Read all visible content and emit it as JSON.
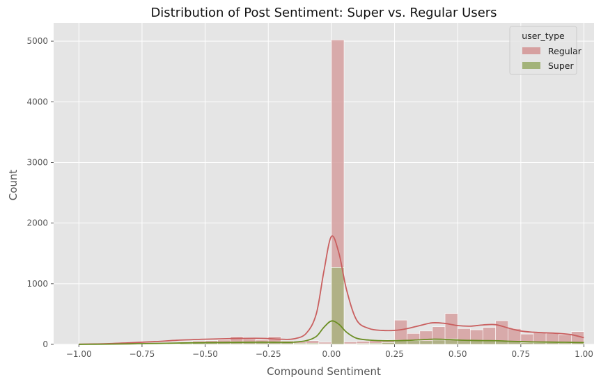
{
  "chart_data": {
    "type": "histogram",
    "title": "Distribution of Post Sentiment: Super vs. Regular Users",
    "xlabel": "Compound Sentiment",
    "ylabel": "Count",
    "xlim": [
      -1.1,
      1.04
    ],
    "ylim": [
      0,
      5300
    ],
    "xticks": [
      -1.0,
      -0.75,
      -0.5,
      -0.25,
      0.0,
      0.25,
      0.5,
      0.75,
      1.0
    ],
    "xtick_labels": [
      "−1.00",
      "−0.75",
      "−0.50",
      "−0.25",
      "0.00",
      "0.25",
      "0.50",
      "0.75",
      "1.00"
    ],
    "yticks": [
      0,
      1000,
      2000,
      3000,
      4000,
      5000
    ],
    "ytick_labels": [
      "0",
      "1000",
      "2000",
      "3000",
      "4000",
      "5000"
    ],
    "grid": true,
    "legend": {
      "title": "user_type",
      "placement": "top-right"
    },
    "bins": {
      "start": -1.0,
      "width": 0.05,
      "count": 40
    },
    "series": [
      {
        "name": "Regular",
        "color": "#d6a0a0",
        "line_color": "#c95f5f",
        "values": [
          5,
          5,
          5,
          5,
          8,
          10,
          20,
          25,
          40,
          55,
          60,
          70,
          130,
          90,
          70,
          130,
          55,
          40,
          60,
          35,
          5020,
          40,
          50,
          60,
          70,
          400,
          180,
          220,
          290,
          510,
          260,
          240,
          280,
          390,
          260,
          170,
          190,
          180,
          160,
          210
        ],
        "kde": [
          [
            -1.0,
            3
          ],
          [
            -0.9,
            10
          ],
          [
            -0.8,
            25
          ],
          [
            -0.7,
            45
          ],
          [
            -0.6,
            70
          ],
          [
            -0.5,
            85
          ],
          [
            -0.4,
            95
          ],
          [
            -0.3,
            100
          ],
          [
            -0.25,
            95
          ],
          [
            -0.2,
            85
          ],
          [
            -0.15,
            90
          ],
          [
            -0.1,
            180
          ],
          [
            -0.06,
            500
          ],
          [
            -0.03,
            1200
          ],
          [
            0.0,
            1780
          ],
          [
            0.03,
            1500
          ],
          [
            0.06,
            900
          ],
          [
            0.1,
            400
          ],
          [
            0.15,
            260
          ],
          [
            0.2,
            230
          ],
          [
            0.25,
            230
          ],
          [
            0.3,
            260
          ],
          [
            0.35,
            310
          ],
          [
            0.4,
            355
          ],
          [
            0.45,
            345
          ],
          [
            0.5,
            310
          ],
          [
            0.55,
            300
          ],
          [
            0.6,
            320
          ],
          [
            0.65,
            325
          ],
          [
            0.7,
            270
          ],
          [
            0.75,
            220
          ],
          [
            0.8,
            200
          ],
          [
            0.85,
            190
          ],
          [
            0.9,
            180
          ],
          [
            0.95,
            160
          ],
          [
            1.0,
            110
          ]
        ]
      },
      {
        "name": "Super",
        "color": "#a3b37a",
        "line_color": "#6b8e23",
        "values": [
          2,
          2,
          2,
          3,
          3,
          5,
          8,
          10,
          15,
          25,
          30,
          35,
          40,
          40,
          40,
          40,
          30,
          20,
          20,
          10,
          1270,
          10,
          15,
          20,
          30,
          70,
          60,
          60,
          70,
          90,
          70,
          60,
          55,
          60,
          50,
          30,
          30,
          30,
          25,
          35
        ],
        "kde": [
          [
            -1.0,
            1
          ],
          [
            -0.9,
            3
          ],
          [
            -0.8,
            8
          ],
          [
            -0.7,
            15
          ],
          [
            -0.6,
            22
          ],
          [
            -0.5,
            28
          ],
          [
            -0.4,
            32
          ],
          [
            -0.3,
            36
          ],
          [
            -0.25,
            36
          ],
          [
            -0.2,
            34
          ],
          [
            -0.15,
            36
          ],
          [
            -0.1,
            60
          ],
          [
            -0.06,
            130
          ],
          [
            -0.03,
            280
          ],
          [
            0.0,
            385
          ],
          [
            0.03,
            330
          ],
          [
            0.06,
            200
          ],
          [
            0.1,
            100
          ],
          [
            0.15,
            70
          ],
          [
            0.2,
            60
          ],
          [
            0.25,
            60
          ],
          [
            0.3,
            65
          ],
          [
            0.35,
            75
          ],
          [
            0.4,
            85
          ],
          [
            0.45,
            82
          ],
          [
            0.5,
            72
          ],
          [
            0.55,
            65
          ],
          [
            0.6,
            62
          ],
          [
            0.65,
            60
          ],
          [
            0.7,
            52
          ],
          [
            0.75,
            45
          ],
          [
            0.8,
            40
          ],
          [
            0.85,
            38
          ],
          [
            0.9,
            35
          ],
          [
            0.95,
            33
          ],
          [
            1.0,
            30
          ]
        ]
      }
    ]
  }
}
